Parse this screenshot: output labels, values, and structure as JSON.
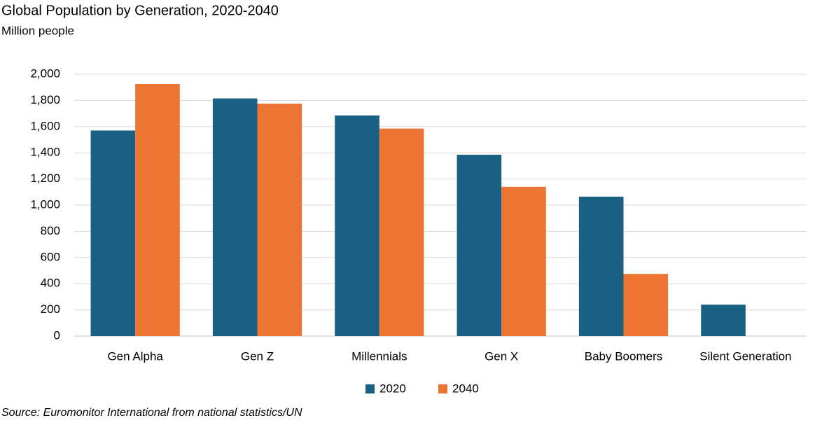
{
  "chart_data": {
    "type": "bar",
    "title": "Global Population by Generation, 2020-2040",
    "subtitle": "Million people",
    "source": "Source: Euromonitor International from national statistics/UN",
    "categories": [
      "Gen Alpha",
      "Gen Z",
      "Millennials",
      "Gen X",
      "Baby Boomers",
      "Silent Generation"
    ],
    "series": [
      {
        "name": "2020",
        "color": "#1a6184",
        "values": [
          1570,
          1815,
          1685,
          1385,
          1065,
          240
        ]
      },
      {
        "name": "2040",
        "color": "#ec7534",
        "values": [
          1925,
          1775,
          1585,
          1140,
          475,
          null
        ]
      }
    ],
    "ylim": [
      0,
      2000
    ],
    "yticks": [
      0,
      {
        "value": 200,
        "label": "200"
      },
      400,
      600,
      800,
      {
        "value": 1000,
        "label": "1,000"
      },
      {
        "value": 1200,
        "label": "1,200"
      },
      {
        "value": 1400,
        "label": "1,400"
      },
      {
        "value": 1600,
        "label": "1,600"
      },
      {
        "value": 1800,
        "label": "1,800"
      },
      {
        "value": 2000,
        "label": "2,000"
      }
    ],
    "grid": true,
    "legend": "bottom"
  }
}
